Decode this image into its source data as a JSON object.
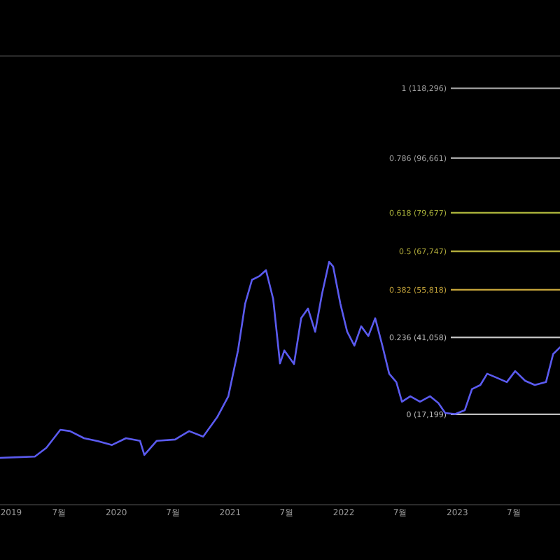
{
  "chart_data": {
    "type": "line",
    "x": [
      "2018-12-23",
      "2019-04-14",
      "2019-05-21",
      "2019-07-05",
      "2019-08-05",
      "2019-09-19",
      "2019-11-03",
      "2019-12-18",
      "2020-02-01",
      "2020-03-17",
      "2020-03-31",
      "2020-05-10",
      "2020-07-08",
      "2020-08-22",
      "2020-10-06",
      "2020-11-20",
      "2020-12-26",
      "2021-01-26",
      "2021-02-18",
      "2021-03-12",
      "2021-04-04",
      "2021-04-26",
      "2021-05-19",
      "2021-06-10",
      "2021-06-24",
      "2021-07-25",
      "2021-08-17",
      "2021-09-08",
      "2021-10-01",
      "2021-10-23",
      "2021-11-15",
      "2021-11-28",
      "2021-12-21",
      "2022-01-12",
      "2022-02-04",
      "2022-02-26",
      "2022-03-21",
      "2022-04-12",
      "2022-05-05",
      "2022-05-27",
      "2022-06-19",
      "2022-07-07",
      "2022-08-03",
      "2022-09-03",
      "2022-10-05",
      "2022-11-01",
      "2022-11-23",
      "2022-12-25",
      "2023-01-25",
      "2023-02-17",
      "2023-03-16",
      "2023-04-07",
      "2023-05-09",
      "2023-06-09",
      "2023-07-06",
      "2023-08-07",
      "2023-09-07",
      "2023-10-13",
      "2023-11-05",
      "2023-11-27"
    ],
    "series": [
      {
        "color": "#5b5bf0",
        "values": [
          3700,
          4100,
          6800,
          12400,
          12000,
          9800,
          8900,
          7700,
          9800,
          9000,
          4600,
          9000,
          9400,
          12000,
          10300,
          16300,
          22800,
          37000,
          51500,
          58900,
          60000,
          61900,
          53000,
          33000,
          37000,
          32800,
          47000,
          50000,
          42800,
          54500,
          64500,
          63000,
          51500,
          42800,
          38500,
          44500,
          41500,
          47000,
          38500,
          29800,
          27200,
          21100,
          22800,
          21100,
          22800,
          20700,
          17600,
          17300,
          18500,
          25000,
          26300,
          29800,
          28500,
          27200,
          30600,
          27600,
          26300,
          27200,
          35900,
          38000
        ]
      }
    ],
    "xlim": [
      "2018-12-23",
      "2023-11-27"
    ],
    "xticks": [
      {
        "value": "2019-01-01",
        "label": "2019"
      },
      {
        "value": "2019-07-01",
        "label": "7월"
      },
      {
        "value": "2020-01-01",
        "label": "2020"
      },
      {
        "value": "2020-07-01",
        "label": "7월"
      },
      {
        "value": "2021-01-01",
        "label": "2021"
      },
      {
        "value": "2021-07-01",
        "label": "7월"
      },
      {
        "value": "2022-01-01",
        "label": "2022"
      },
      {
        "value": "2022-07-01",
        "label": "7월"
      },
      {
        "value": "2023-01-01",
        "label": "2023"
      },
      {
        "value": "2023-07-01",
        "label": "7월"
      }
    ],
    "ylim": [
      -10600,
      128300
    ],
    "tick_labels": "x",
    "ref_lines": [
      {
        "axis": "y",
        "value": 118296,
        "label": "1 (118,296)",
        "color": "#9e9e9e"
      },
      {
        "axis": "y",
        "value": 96661,
        "label": "0.786 (96,661)",
        "color": "#9e9e9e"
      },
      {
        "axis": "y",
        "value": 79677,
        "label": "0.618 (79,677)",
        "color": "#a8b03a"
      },
      {
        "axis": "y",
        "value": 67747,
        "label": "0.5 (67,747)",
        "color": "#b0aa3a"
      },
      {
        "axis": "y",
        "value": 55818,
        "label": "0.382 (55,818)",
        "color": "#c2a23a"
      },
      {
        "axis": "y",
        "value": 41058,
        "label": "0.236 (41,058)",
        "color": "#bdbdbd"
      },
      {
        "axis": "y",
        "value": 17199,
        "label": "0 (17,199)",
        "color": "#bdbdbd"
      }
    ]
  }
}
